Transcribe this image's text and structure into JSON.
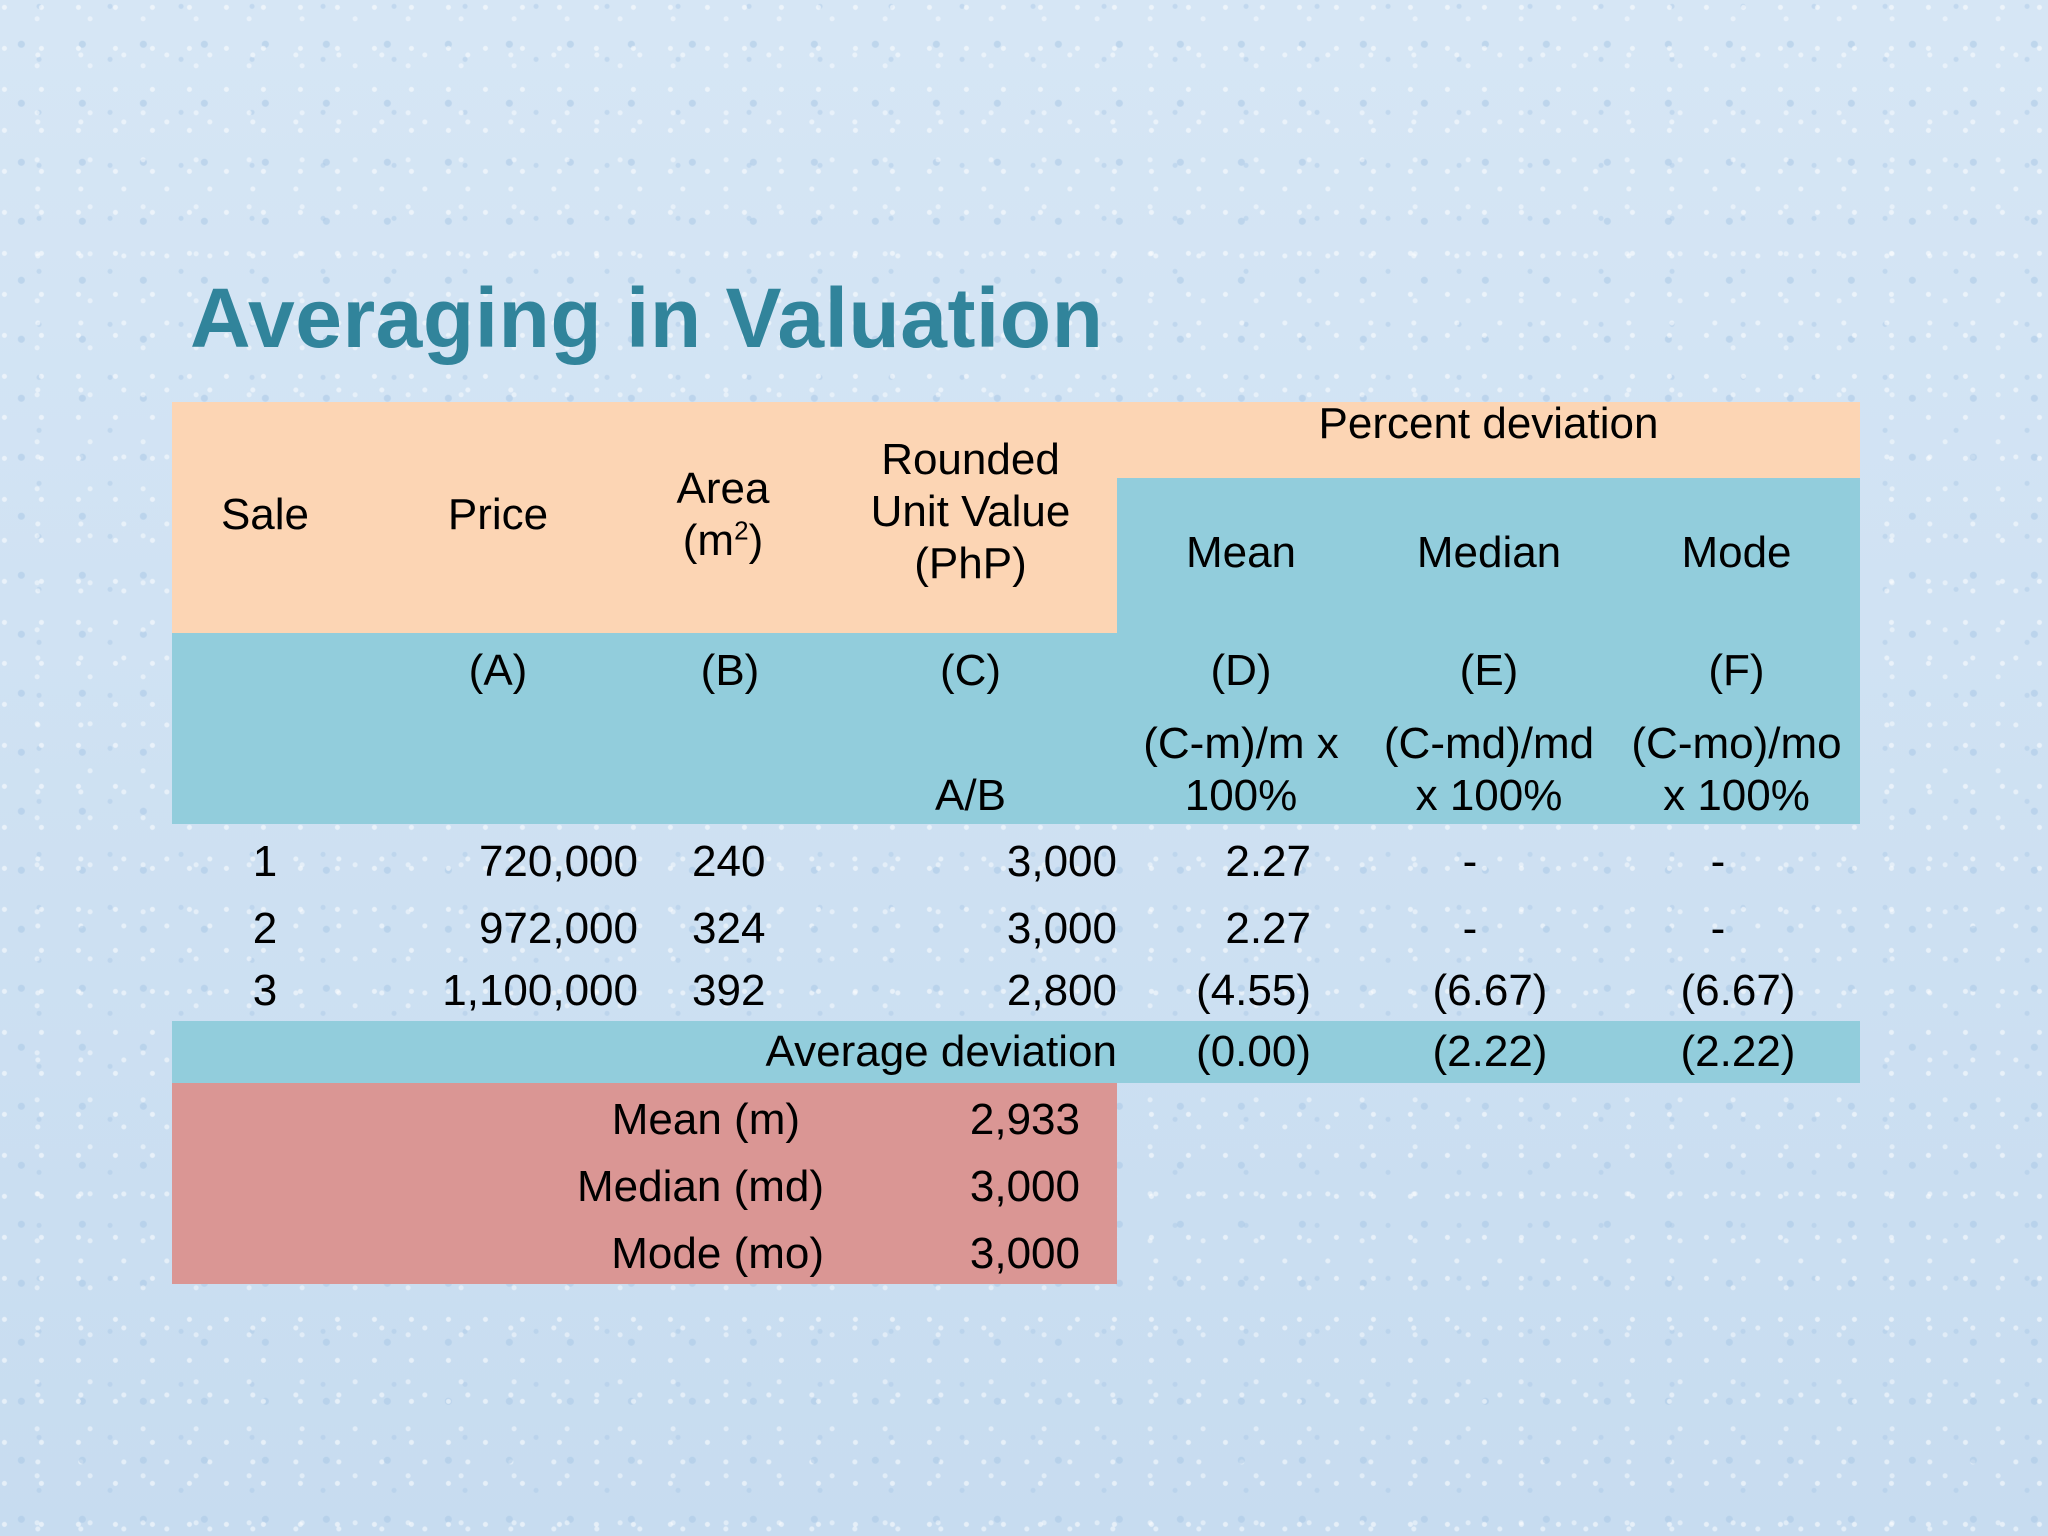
{
  "slide": {
    "title": "Averaging in Valuation"
  },
  "table": {
    "headers": {
      "sale": "Sale",
      "price": "Price",
      "area_line1": "Area",
      "area_line2_prefix": "(m",
      "area_line2_sup": "2",
      "area_line2_suffix": ")",
      "unit_value_line1": "Rounded",
      "unit_value_line2": "Unit Value",
      "unit_value_line3": "(PhP)",
      "percent_deviation": "Percent deviation",
      "mean": "Mean",
      "median": "Median",
      "mode": "Mode"
    },
    "column_letters": {
      "a": "(A)",
      "b": "(B)",
      "c": "(C)",
      "d": "(D)",
      "e": "(E)",
      "f": "(F)"
    },
    "formulas": {
      "c": "A/B",
      "d_line1": "(C-m)/m x",
      "d_line2": "100%",
      "e_line1": "(C-md)/md",
      "e_line2": "x 100%",
      "f_line1": "(C-mo)/mo",
      "f_line2": "x 100%"
    },
    "rows": [
      {
        "sale": "1",
        "price": "720,000",
        "area": "240",
        "unit_value": "3,000",
        "mean_dev": "2.27",
        "median_dev": "-",
        "mode_dev": "-"
      },
      {
        "sale": "2",
        "price": "972,000",
        "area": "324",
        "unit_value": "3,000",
        "mean_dev": "2.27",
        "median_dev": "-",
        "mode_dev": "-"
      },
      {
        "sale": "3",
        "price": "1,100,000",
        "area": "392",
        "unit_value": "2,800",
        "mean_dev": "(4.55)",
        "median_dev": "(6.67)",
        "mode_dev": "(6.67)"
      }
    ],
    "average_deviation": {
      "label": "Average deviation",
      "mean": "(0.00)",
      "median": "(2.22)",
      "mode": "(2.22)"
    },
    "statistics": [
      {
        "label": "Mean (m)",
        "value": "2,933"
      },
      {
        "label": "Median (md)",
        "value": "3,000"
      },
      {
        "label": "Mode (mo)",
        "value": "3,000"
      }
    ]
  }
}
